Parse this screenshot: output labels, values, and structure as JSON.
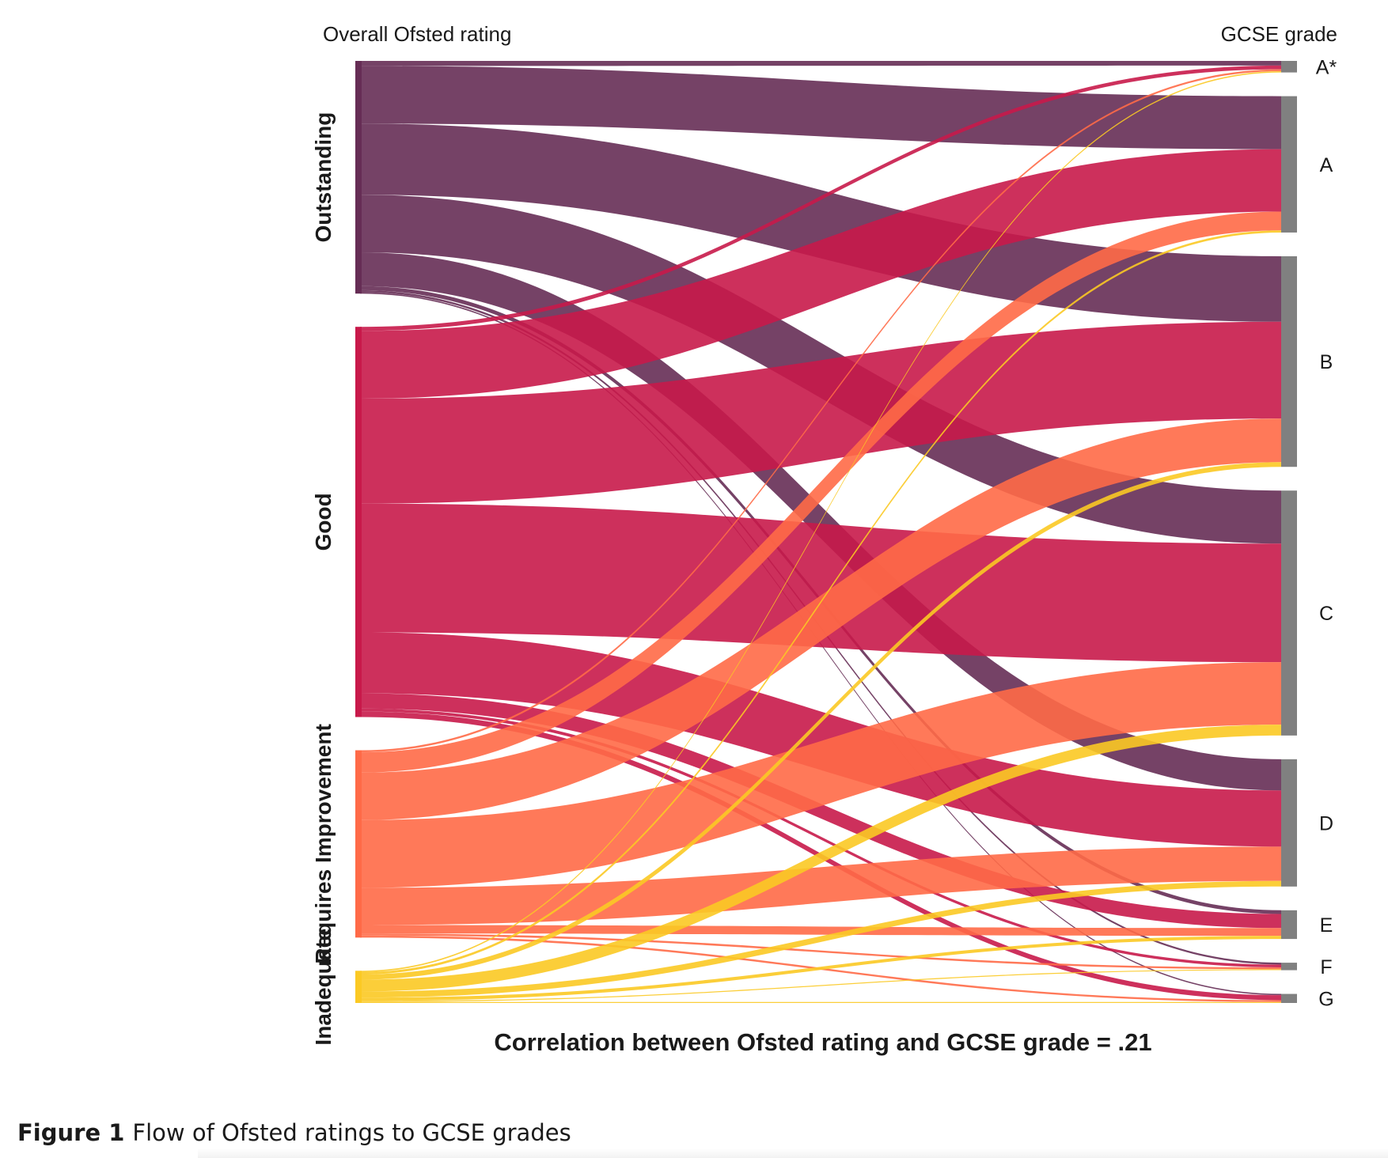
{
  "chart_data": {
    "type": "sankey",
    "left_header": "Overall Ofsted rating",
    "right_header": "GCSE grade",
    "footer_title": "Correlation between Ofsted rating and GCSE grade = .21",
    "sources": [
      {
        "name": "Outstanding",
        "color": "#662d55"
      },
      {
        "name": "Good",
        "color": "#c8194a"
      },
      {
        "name": "Requires Improvement",
        "color": "#ff6a47"
      },
      {
        "name": "Inadequate",
        "color": "#fbc924"
      }
    ],
    "targets": [
      "A*",
      "A",
      "B",
      "C",
      "D",
      "E",
      "F",
      "G"
    ],
    "flows": {
      "Outstanding": {
        "A*": 1.5,
        "A": 17,
        "B": 21,
        "C": 17,
        "D": 10,
        "E": 1.2,
        "F": 0.6,
        "G": 0.4
      },
      "Good": {
        "A*": 1.2,
        "A": 20,
        "B": 31,
        "C": 38,
        "D": 18,
        "E": 4.5,
        "F": 0.9,
        "G": 1.6
      },
      "Requires Improvement": {
        "A*": 0.6,
        "A": 6,
        "B": 14,
        "C": 20,
        "D": 11,
        "E": 2.5,
        "F": 0.6,
        "G": 0.6
      },
      "Inadequate": {
        "A*": 0.4,
        "A": 0.7,
        "B": 1.5,
        "C": 3.5,
        "D": 1.8,
        "E": 1.0,
        "F": 0.3,
        "G": 0.3
      }
    },
    "node_bar_color": "#808080"
  },
  "caption": {
    "label": "Figure 1",
    "text": "Flow of Ofsted ratings to GCSE grades"
  }
}
